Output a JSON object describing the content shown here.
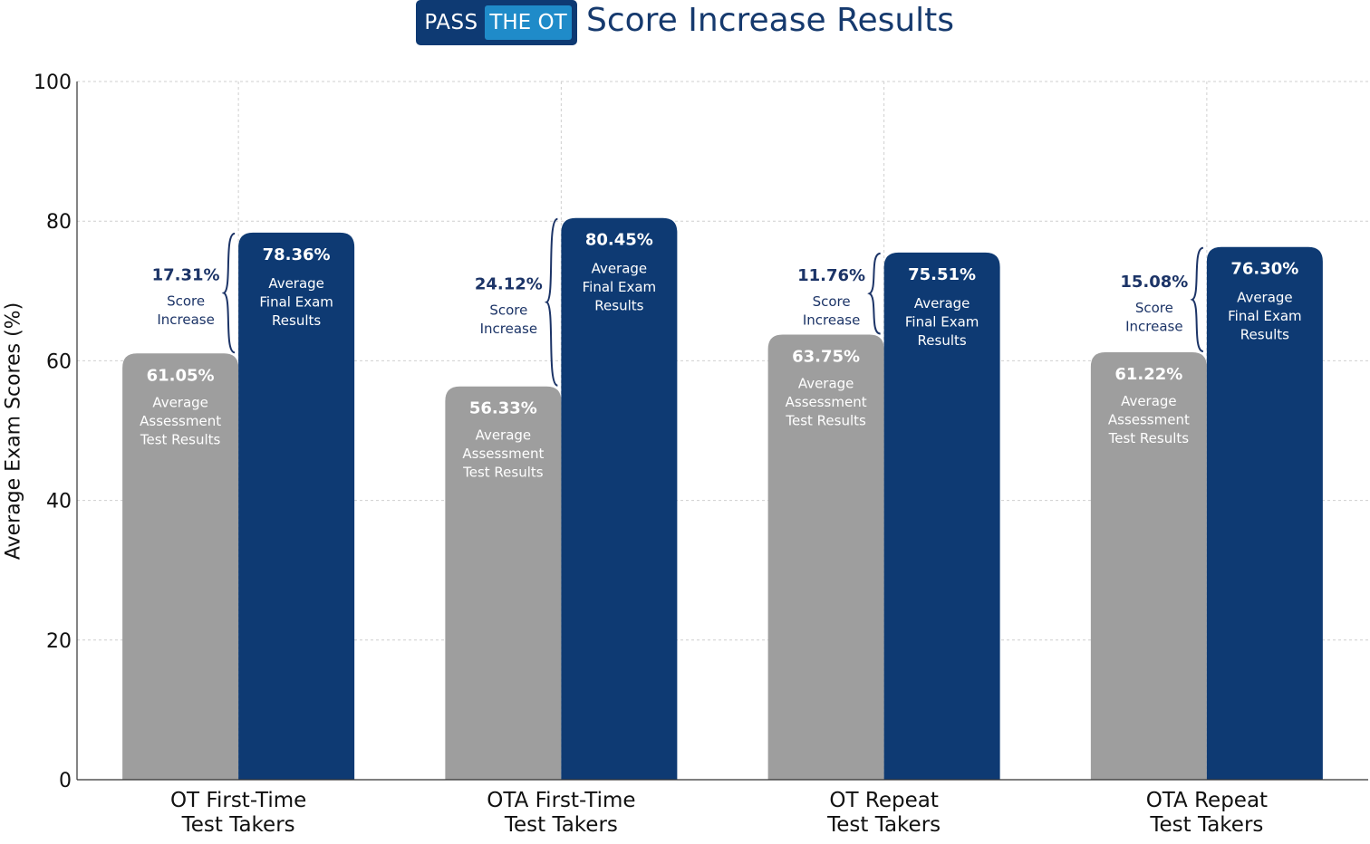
{
  "header": {
    "logo_left": "PASS",
    "logo_right": "THE OT",
    "title": "Score Increase Results"
  },
  "colors": {
    "assessment": "#9e9e9e",
    "final": "#0e3a73",
    "annotation": "#1c3467",
    "grid": "#cfcfcf"
  },
  "chart_data": {
    "type": "bar",
    "title": "Score Increase Results",
    "xlabel": "",
    "ylabel": "Average Exam Scores (%)",
    "ylim": [
      0,
      100
    ],
    "yticks": [
      0,
      20,
      40,
      60,
      80,
      100
    ],
    "grid": true,
    "categories": [
      [
        "OT First-Time",
        "Test Takers"
      ],
      [
        "OTA First-Time",
        "Test Takers"
      ],
      [
        "OT Repeat",
        "Test Takers"
      ],
      [
        "OTA Repeat",
        "Test Takers"
      ]
    ],
    "series": [
      {
        "name": "Average Assessment Test Results",
        "label_lines": [
          "Average",
          "Assessment",
          "Test Results"
        ],
        "values": [
          61.05,
          56.33,
          63.75,
          61.22
        ],
        "value_labels": [
          "61.05%",
          "56.33%",
          "63.75%",
          "61.22%"
        ]
      },
      {
        "name": "Average Final Exam Results",
        "label_lines": [
          "Average",
          "Final Exam",
          "Results"
        ],
        "values": [
          78.36,
          80.45,
          75.51,
          76.3
        ],
        "value_labels": [
          "78.36%",
          "80.45%",
          "75.51%",
          "76.30%"
        ]
      }
    ],
    "annotations": {
      "label_lines": [
        "Score",
        "Increase"
      ],
      "values": [
        17.31,
        24.12,
        11.76,
        15.08
      ],
      "value_labels": [
        "17.31%",
        "24.12%",
        "11.76%",
        "15.08%"
      ]
    }
  }
}
